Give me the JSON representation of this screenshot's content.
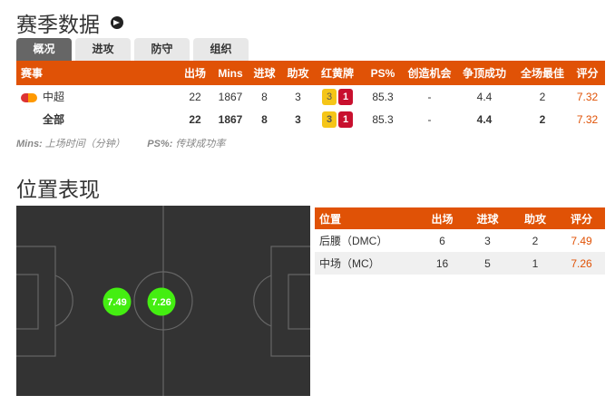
{
  "season": {
    "title": "赛季数据",
    "info_icon": "arrow-circle-right-icon",
    "tabs": [
      "概况",
      "进攻",
      "防守",
      "组织"
    ],
    "active_tab": 0,
    "columns": [
      "赛事",
      "出场",
      "Mins",
      "进球",
      "助攻",
      "红黄牌",
      "PS%",
      "创造机会",
      "争顶成功",
      "全场最佳",
      "评分"
    ],
    "rows": [
      {
        "competition": "中超",
        "apps": "22",
        "mins": "1867",
        "goals": "8",
        "assists": "3",
        "yellow": "3",
        "red": "1",
        "ps": "85.3",
        "key_passes": "-",
        "aerials": "4.4",
        "motm": "2",
        "rating": "7.32"
      },
      {
        "competition": "全部",
        "apps": "22",
        "mins": "1867",
        "goals": "8",
        "assists": "3",
        "yellow": "3",
        "red": "1",
        "ps": "85.3",
        "key_passes": "-",
        "aerials": "4.4",
        "motm": "2",
        "rating": "7.32"
      }
    ],
    "note": {
      "mins_key": "Mins:",
      "mins_val": "上场时间（分钟）",
      "ps_key": "PS%:",
      "ps_val": "传球成功率"
    }
  },
  "positions": {
    "title": "位置表现",
    "columns": [
      "位置",
      "出场",
      "进球",
      "助攻",
      "评分"
    ],
    "rows": [
      {
        "position": "后腰（DMC）",
        "apps": "6",
        "goals": "3",
        "assists": "2",
        "rating": "7.49"
      },
      {
        "position": "中场（MC）",
        "apps": "16",
        "goals": "5",
        "assists": "1",
        "rating": "7.26"
      }
    ],
    "pitch_markers": [
      {
        "label": "7.49",
        "position": "DMC"
      },
      {
        "label": "7.26",
        "position": "MC"
      }
    ]
  },
  "colors": {
    "accent": "#e05206",
    "pitch": "#333333",
    "marker": "#44ee11",
    "yellow_card": "#f5c518",
    "red_card": "#c8102e"
  }
}
